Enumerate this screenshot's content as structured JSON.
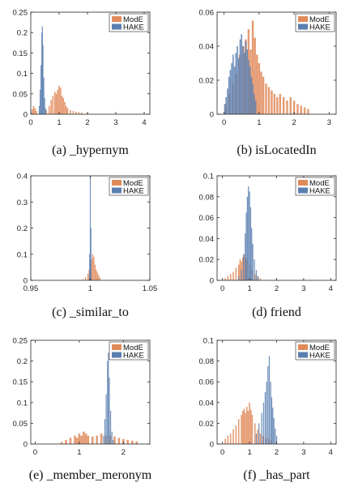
{
  "colors": {
    "ModE": "#e08a5a",
    "HAKE": "#5b7fb0"
  },
  "chart_data": [
    {
      "type": "bar",
      "caption": "(a) _hypernym",
      "legend": [
        "ModE",
        "HAKE"
      ],
      "legend_position": "top-right",
      "xlim": [
        0,
        4.2
      ],
      "ylim": [
        0,
        0.25
      ],
      "xticks": [
        0,
        1,
        2,
        3,
        4
      ],
      "xtick_labels": [
        "0",
        "1",
        "2",
        "3",
        "4"
      ],
      "yticks": [
        0,
        0.05,
        0.1,
        0.15,
        0.2,
        0.25
      ],
      "ytick_labels": [
        "0",
        "0.05",
        "0.1",
        "0.15",
        "0.2",
        "0.25"
      ],
      "series": [
        {
          "name": "ModE",
          "points": [
            [
              0.05,
              0.012
            ],
            [
              0.1,
              0.02
            ],
            [
              0.15,
              0.015
            ],
            [
              0.2,
              0.008
            ],
            [
              0.55,
              0.01
            ],
            [
              0.65,
              0.02
            ],
            [
              0.72,
              0.035
            ],
            [
              0.78,
              0.045
            ],
            [
              0.85,
              0.055
            ],
            [
              0.9,
              0.05
            ],
            [
              0.95,
              0.06
            ],
            [
              1.0,
              0.07
            ],
            [
              1.05,
              0.065
            ],
            [
              1.1,
              0.045
            ],
            [
              1.15,
              0.04
            ],
            [
              1.2,
              0.03
            ],
            [
              1.25,
              0.02
            ],
            [
              1.3,
              0.015
            ],
            [
              1.4,
              0.01
            ],
            [
              1.5,
              0.008
            ],
            [
              1.6,
              0.006
            ],
            [
              1.7,
              0.005
            ],
            [
              1.8,
              0.004
            ],
            [
              2.0,
              0.003
            ]
          ]
        },
        {
          "name": "HAKE",
          "points": [
            [
              0.3,
              0.02
            ],
            [
              0.33,
              0.06
            ],
            [
              0.36,
              0.12
            ],
            [
              0.39,
              0.2
            ],
            [
              0.41,
              0.215
            ],
            [
              0.43,
              0.17
            ],
            [
              0.46,
              0.09
            ],
            [
              0.49,
              0.04
            ],
            [
              0.52,
              0.015
            ]
          ]
        }
      ]
    },
    {
      "type": "bar",
      "caption": "(b) isLocatedIn",
      "legend": [
        "ModE",
        "HAKE"
      ],
      "legend_position": "top-right",
      "xlim": [
        -0.2,
        3.2
      ],
      "ylim": [
        0,
        0.06
      ],
      "xticks": [
        0,
        1,
        2,
        3
      ],
      "xtick_labels": [
        "0",
        "1",
        "2",
        "3"
      ],
      "yticks": [
        0,
        0.02,
        0.04,
        0.06
      ],
      "ytick_labels": [
        "0",
        "0.02",
        "0.04",
        "0.06"
      ],
      "series": [
        {
          "name": "ModE",
          "points": [
            [
              0.05,
              0.006
            ],
            [
              0.15,
              0.012
            ],
            [
              0.25,
              0.018
            ],
            [
              0.35,
              0.024
            ],
            [
              0.45,
              0.035
            ],
            [
              0.55,
              0.04
            ],
            [
              0.62,
              0.044
            ],
            [
              0.7,
              0.05
            ],
            [
              0.76,
              0.038
            ],
            [
              0.82,
              0.055
            ],
            [
              0.88,
              0.045
            ],
            [
              0.94,
              0.035
            ],
            [
              1.0,
              0.03
            ],
            [
              1.06,
              0.025
            ],
            [
              1.12,
              0.022
            ],
            [
              1.2,
              0.018
            ],
            [
              1.28,
              0.016
            ],
            [
              1.36,
              0.014
            ],
            [
              1.44,
              0.012
            ],
            [
              1.52,
              0.01
            ],
            [
              1.6,
              0.012
            ],
            [
              1.7,
              0.01
            ],
            [
              1.8,
              0.008
            ],
            [
              1.9,
              0.01
            ],
            [
              2.0,
              0.008
            ],
            [
              2.1,
              0.006
            ],
            [
              2.2,
              0.005
            ],
            [
              2.3,
              0.004
            ],
            [
              2.4,
              0.003
            ]
          ]
        },
        {
          "name": "HAKE",
          "points": [
            [
              0.02,
              0.006
            ],
            [
              0.06,
              0.01
            ],
            [
              0.1,
              0.015
            ],
            [
              0.14,
              0.022
            ],
            [
              0.18,
              0.026
            ],
            [
              0.22,
              0.03
            ],
            [
              0.26,
              0.035
            ],
            [
              0.3,
              0.028
            ],
            [
              0.34,
              0.036
            ],
            [
              0.38,
              0.04
            ],
            [
              0.42,
              0.033
            ],
            [
              0.46,
              0.044
            ],
            [
              0.5,
              0.047
            ],
            [
              0.54,
              0.04
            ],
            [
              0.58,
              0.036
            ],
            [
              0.62,
              0.043
            ],
            [
              0.66,
              0.038
            ],
            [
              0.7,
              0.032
            ],
            [
              0.74,
              0.028
            ],
            [
              0.78,
              0.022
            ],
            [
              0.82,
              0.018
            ],
            [
              0.86,
              0.012
            ],
            [
              0.9,
              0.008
            ]
          ]
        }
      ]
    },
    {
      "type": "bar",
      "caption": "(c) _similar_to",
      "legend": [
        "ModE",
        "HAKE"
      ],
      "legend_position": "top-right",
      "xlim": [
        0.95,
        1.05
      ],
      "ylim": [
        0,
        0.4
      ],
      "xticks": [
        0.95,
        1,
        1.05
      ],
      "xtick_labels": [
        "0.95",
        "1",
        "1.05"
      ],
      "yticks": [
        0,
        0.1,
        0.2,
        0.3,
        0.4
      ],
      "ytick_labels": [
        "0",
        "0.1",
        "0.2",
        "0.3",
        "0.4"
      ],
      "series": [
        {
          "name": "ModE",
          "points": [
            [
              0.994,
              0.005
            ],
            [
              0.996,
              0.012
            ],
            [
              0.998,
              0.025
            ],
            [
              0.999,
              0.04
            ],
            [
              1.0,
              0.05
            ],
            [
              1.001,
              0.08
            ],
            [
              1.002,
              0.1
            ],
            [
              1.003,
              0.09
            ],
            [
              1.004,
              0.06
            ],
            [
              1.005,
              0.04
            ],
            [
              1.006,
              0.03
            ],
            [
              1.007,
              0.02
            ],
            [
              1.008,
              0.01
            ]
          ]
        },
        {
          "name": "HAKE",
          "points": [
            [
              0.9995,
              0.1
            ],
            [
              1.0,
              0.4
            ],
            [
              1.0005,
              0.2
            ]
          ]
        }
      ]
    },
    {
      "type": "bar",
      "caption": "(d) friend",
      "legend": [
        "ModE",
        "HAKE"
      ],
      "legend_position": "top-right",
      "xlim": [
        -0.2,
        4.2
      ],
      "ylim": [
        0,
        0.1
      ],
      "xticks": [
        0,
        1,
        2,
        3,
        4
      ],
      "xtick_labels": [
        "0",
        "1",
        "2",
        "3",
        "4"
      ],
      "yticks": [
        0,
        0.02,
        0.04,
        0.06,
        0.08,
        0.1
      ],
      "ytick_labels": [
        "0",
        "0.02",
        "0.04",
        "0.06",
        "0.08",
        "0.1"
      ],
      "series": [
        {
          "name": "ModE",
          "points": [
            [
              0.1,
              0.002
            ],
            [
              0.2,
              0.004
            ],
            [
              0.3,
              0.006
            ],
            [
              0.4,
              0.008
            ],
            [
              0.5,
              0.012
            ],
            [
              0.6,
              0.015
            ],
            [
              0.65,
              0.02
            ],
            [
              0.7,
              0.018
            ],
            [
              0.75,
              0.022
            ],
            [
              0.8,
              0.025
            ],
            [
              0.85,
              0.022
            ],
            [
              0.9,
              0.02
            ],
            [
              1.0,
              0.015
            ],
            [
              1.1,
              0.01
            ],
            [
              1.2,
              0.006
            ],
            [
              1.3,
              0.004
            ],
            [
              1.4,
              0.002
            ]
          ]
        },
        {
          "name": "HAKE",
          "points": [
            [
              0.6,
              0.004
            ],
            [
              0.7,
              0.01
            ],
            [
              0.78,
              0.025
            ],
            [
              0.84,
              0.045
            ],
            [
              0.88,
              0.065
            ],
            [
              0.92,
              0.08
            ],
            [
              0.96,
              0.09
            ],
            [
              1.0,
              0.085
            ],
            [
              1.04,
              0.07
            ],
            [
              1.08,
              0.05
            ],
            [
              1.12,
              0.035
            ],
            [
              1.18,
              0.02
            ],
            [
              1.25,
              0.01
            ],
            [
              1.32,
              0.004
            ]
          ]
        }
      ]
    },
    {
      "type": "bar",
      "caption": "(e) _member_meronym",
      "legend": [
        "ModE",
        "HAKE"
      ],
      "legend_position": "top-right",
      "xlim": [
        -0.1,
        2.6
      ],
      "ylim": [
        0,
        0.25
      ],
      "xticks": [
        0,
        1,
        2
      ],
      "xtick_labels": [
        "0",
        "1",
        "2"
      ],
      "yticks": [
        0,
        0.05,
        0.1,
        0.15,
        0.2,
        0.25
      ],
      "ytick_labels": [
        "0",
        "0.05",
        "0.1",
        "0.15",
        "0.2",
        "0.25"
      ],
      "series": [
        {
          "name": "ModE",
          "points": [
            [
              0.6,
              0.005
            ],
            [
              0.7,
              0.01
            ],
            [
              0.8,
              0.015
            ],
            [
              0.9,
              0.02
            ],
            [
              0.95,
              0.015
            ],
            [
              1.0,
              0.025
            ],
            [
              1.05,
              0.02
            ],
            [
              1.1,
              0.03
            ],
            [
              1.15,
              0.025
            ],
            [
              1.2,
              0.02
            ],
            [
              1.3,
              0.018
            ],
            [
              1.4,
              0.02
            ],
            [
              1.5,
              0.025
            ],
            [
              1.6,
              0.02
            ],
            [
              1.7,
              0.02
            ],
            [
              1.8,
              0.018
            ],
            [
              1.9,
              0.015
            ],
            [
              2.0,
              0.012
            ],
            [
              2.1,
              0.01
            ],
            [
              2.2,
              0.008
            ],
            [
              2.3,
              0.006
            ]
          ]
        },
        {
          "name": "HAKE",
          "points": [
            [
              1.55,
              0.02
            ],
            [
              1.58,
              0.06
            ],
            [
              1.61,
              0.12
            ],
            [
              1.64,
              0.2
            ],
            [
              1.66,
              0.22
            ],
            [
              1.68,
              0.16
            ],
            [
              1.71,
              0.08
            ],
            [
              1.74,
              0.03
            ],
            [
              1.77,
              0.01
            ]
          ]
        }
      ]
    },
    {
      "type": "bar",
      "caption": "(f) _has_part",
      "legend": [
        "ModE",
        "HAKE"
      ],
      "legend_position": "top-right",
      "xlim": [
        -0.2,
        4.2
      ],
      "ylim": [
        0,
        0.1
      ],
      "xticks": [
        0,
        1,
        2,
        3,
        4
      ],
      "xtick_labels": [
        "0",
        "1",
        "2",
        "3",
        "4"
      ],
      "yticks": [
        0,
        0.02,
        0.04,
        0.06,
        0.08,
        0.1
      ],
      "ytick_labels": [
        "0",
        "0.02",
        "0.04",
        "0.06",
        "0.08",
        "0.1"
      ],
      "series": [
        {
          "name": "ModE",
          "points": [
            [
              0.1,
              0.005
            ],
            [
              0.2,
              0.008
            ],
            [
              0.3,
              0.01
            ],
            [
              0.4,
              0.014
            ],
            [
              0.5,
              0.018
            ],
            [
              0.6,
              0.024
            ],
            [
              0.7,
              0.028
            ],
            [
              0.75,
              0.032
            ],
            [
              0.8,
              0.034
            ],
            [
              0.85,
              0.03
            ],
            [
              0.9,
              0.036
            ],
            [
              0.95,
              0.032
            ],
            [
              1.0,
              0.04
            ],
            [
              1.05,
              0.033
            ],
            [
              1.1,
              0.028
            ],
            [
              1.2,
              0.02
            ],
            [
              1.3,
              0.014
            ],
            [
              1.4,
              0.01
            ],
            [
              1.5,
              0.008
            ],
            [
              1.6,
              0.006
            ],
            [
              1.7,
              0.005
            ],
            [
              1.8,
              0.004
            ]
          ]
        },
        {
          "name": "HAKE",
          "points": [
            [
              1.25,
              0.01
            ],
            [
              1.35,
              0.02
            ],
            [
              1.45,
              0.03
            ],
            [
              1.52,
              0.04
            ],
            [
              1.58,
              0.05
            ],
            [
              1.63,
              0.06
            ],
            [
              1.68,
              0.075
            ],
            [
              1.73,
              0.085
            ],
            [
              1.78,
              0.06
            ],
            [
              1.82,
              0.045
            ],
            [
              1.86,
              0.035
            ],
            [
              1.9,
              0.025
            ],
            [
              1.95,
              0.015
            ],
            [
              2.0,
              0.008
            ]
          ]
        }
      ]
    }
  ]
}
